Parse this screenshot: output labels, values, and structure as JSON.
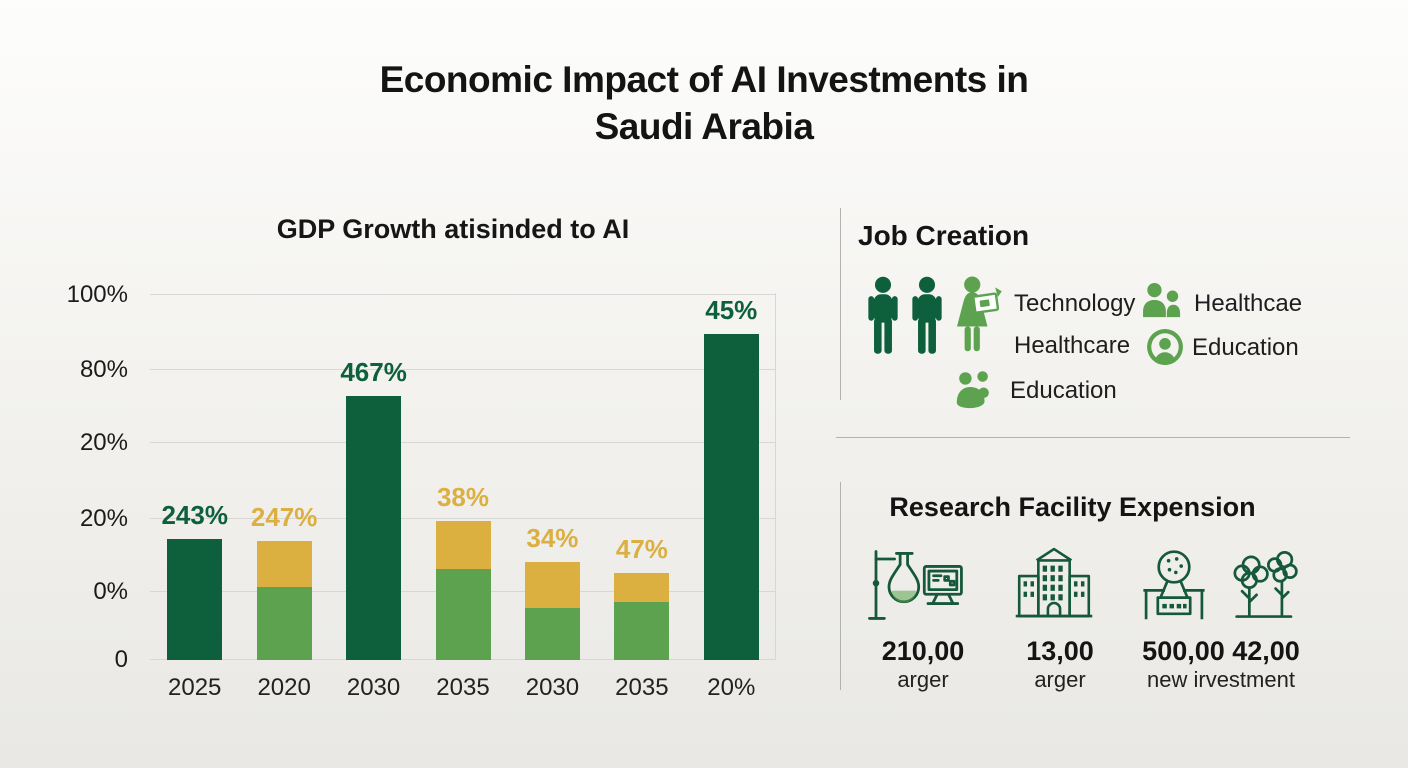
{
  "page": {
    "title_line1": "Economic Impact of AI Investments in",
    "title_line2": "Saudi Arabia"
  },
  "colors": {
    "dark_green": "#0e5f3c",
    "light_green": "#5ca24f",
    "gold": "#dcaf41",
    "grid": "#d8d7d3",
    "divider": "#b3b2ae"
  },
  "chart_data": {
    "type": "bar",
    "stacked": true,
    "title": "GDP Growth atisinded to AI",
    "xlabel": "",
    "ylabel": "",
    "legend": "none",
    "axis_note": "values expressed as % of the top (100%) gridline height",
    "y_ticks": [
      {
        "label": "100%",
        "value": 100
      },
      {
        "label": "80%",
        "value": 79.5
      },
      {
        "label": "20%",
        "value": 59.5
      },
      {
        "label": "20%",
        "value": 38.6
      },
      {
        "label": "0%",
        "value": 18.6
      },
      {
        "label": "0",
        "value": 0
      }
    ],
    "bars": [
      {
        "category": "2025",
        "label": "243%",
        "label_color": "#0e5f3c",
        "segments": [
          {
            "color": "#0e5f3c",
            "value": 33.2
          }
        ]
      },
      {
        "category": "2020",
        "label": "247%",
        "label_color": "#dcaf41",
        "segments": [
          {
            "color": "#5ca24f",
            "value": 20.0
          },
          {
            "color": "#dcaf41",
            "value": 12.6
          }
        ]
      },
      {
        "category": "2030",
        "label": "467%",
        "label_color": "#0e5f3c",
        "segments": [
          {
            "color": "#0e5f3c",
            "value": 72.3
          }
        ]
      },
      {
        "category": "2035",
        "label": "38%",
        "label_color": "#dcaf41",
        "segments": [
          {
            "color": "#5ca24f",
            "value": 24.9
          },
          {
            "color": "#dcaf41",
            "value": 13.2
          }
        ]
      },
      {
        "category": "2030",
        "label": "34%",
        "label_color": "#dcaf41",
        "segments": [
          {
            "color": "#5ca24f",
            "value": 14.2
          },
          {
            "color": "#dcaf41",
            "value": 12.6
          }
        ]
      },
      {
        "category": "2035",
        "label": "47%",
        "label_color": "#dcaf41",
        "segments": [
          {
            "color": "#5ca24f",
            "value": 15.9
          },
          {
            "color": "#dcaf41",
            "value": 7.9
          }
        ]
      },
      {
        "category": "20%",
        "label": "45%",
        "label_color": "#0e5f3c",
        "segments": [
          {
            "color": "#0e5f3c",
            "value": 89.3
          }
        ]
      }
    ]
  },
  "job_creation": {
    "heading": "Job Creation",
    "row1_left": "Technology",
    "row1_right": "Healthcae",
    "row2_left": "Healthcare",
    "row2_right": "Education",
    "row3": "Education"
  },
  "research": {
    "heading": "Research Facility Expension",
    "stats": [
      {
        "value": "210,00",
        "label": "arger"
      },
      {
        "value": "13,00",
        "label": "arger"
      },
      {
        "value": "500,00 42,00",
        "label": "new irvestment"
      }
    ]
  }
}
